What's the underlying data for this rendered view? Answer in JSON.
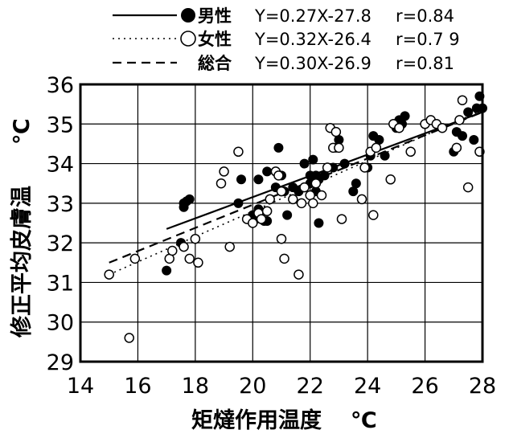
{
  "chart_data": {
    "type": "scatter",
    "xlabel": "矩燵作用温度",
    "x_unit": "℃",
    "ylabel": "修正平均皮膚温",
    "y_unit": "℃",
    "xlim": [
      14,
      28
    ],
    "ylim": [
      29,
      36
    ],
    "x_ticks": [
      14,
      16,
      18,
      20,
      22,
      24,
      26,
      28
    ],
    "y_ticks": [
      29,
      30,
      31,
      32,
      33,
      34,
      35,
      36
    ],
    "grid": true,
    "legend_position": "top",
    "series": [
      {
        "name": "男性",
        "marker": "filled-circle",
        "equation": "Y=0.27X-27.8",
        "r": "r=0.84",
        "line_style": "solid",
        "fit": [
          17,
          32.35,
          28,
          35.3
        ],
        "points": [
          [
            17.0,
            31.3
          ],
          [
            17.5,
            32.0
          ],
          [
            17.6,
            32.9
          ],
          [
            17.6,
            33.0
          ],
          [
            17.7,
            33.05
          ],
          [
            17.8,
            33.1
          ],
          [
            19.5,
            33.0
          ],
          [
            19.6,
            33.6
          ],
          [
            20.0,
            32.7
          ],
          [
            20.1,
            32.6
          ],
          [
            20.2,
            32.85
          ],
          [
            20.2,
            33.6
          ],
          [
            20.4,
            32.55
          ],
          [
            20.5,
            32.55
          ],
          [
            20.5,
            33.8
          ],
          [
            20.8,
            33.4
          ],
          [
            20.9,
            34.4
          ],
          [
            21.0,
            33.7
          ],
          [
            21.1,
            33.3
          ],
          [
            21.2,
            32.7
          ],
          [
            21.4,
            33.4
          ],
          [
            21.6,
            33.3
          ],
          [
            21.8,
            34.0
          ],
          [
            22.0,
            33.5
          ],
          [
            22.0,
            33.7
          ],
          [
            22.1,
            34.1
          ],
          [
            22.2,
            33.7
          ],
          [
            22.2,
            33.3
          ],
          [
            22.3,
            33.6
          ],
          [
            22.3,
            32.5
          ],
          [
            22.5,
            33.7
          ],
          [
            22.8,
            33.9
          ],
          [
            22.9,
            34.4
          ],
          [
            23.0,
            34.6
          ],
          [
            23.2,
            34.0
          ],
          [
            23.5,
            33.3
          ],
          [
            23.6,
            33.5
          ],
          [
            24.0,
            33.9
          ],
          [
            24.1,
            34.2
          ],
          [
            24.2,
            34.7
          ],
          [
            24.4,
            34.6
          ],
          [
            24.6,
            34.2
          ],
          [
            25.0,
            34.9
          ],
          [
            25.1,
            35.1
          ],
          [
            25.2,
            35.0
          ],
          [
            25.3,
            35.2
          ],
          [
            25.5,
            34.3
          ],
          [
            27.0,
            34.3
          ],
          [
            27.1,
            34.8
          ],
          [
            27.3,
            34.7
          ],
          [
            27.5,
            35.3
          ],
          [
            27.7,
            34.6
          ],
          [
            27.8,
            35.4
          ],
          [
            27.9,
            35.7
          ],
          [
            28.0,
            35.4
          ]
        ]
      },
      {
        "name": "女性",
        "marker": "open-circle",
        "equation": "Y=0.32X-26.4",
        "r": "r=0.7 9",
        "line_style": "dotted",
        "fit": [
          15,
          31.2,
          28,
          35.35
        ],
        "points": [
          [
            15.0,
            31.2
          ],
          [
            15.9,
            31.6
          ],
          [
            15.7,
            29.6
          ],
          [
            17.1,
            31.6
          ],
          [
            17.2,
            31.8
          ],
          [
            17.6,
            31.9
          ],
          [
            17.8,
            31.6
          ],
          [
            18.0,
            32.1
          ],
          [
            18.1,
            31.5
          ],
          [
            18.9,
            33.5
          ],
          [
            19.0,
            33.8
          ],
          [
            19.2,
            31.9
          ],
          [
            19.5,
            34.3
          ],
          [
            19.8,
            32.6
          ],
          [
            20.0,
            32.5
          ],
          [
            20.2,
            32.75
          ],
          [
            20.3,
            32.6
          ],
          [
            20.5,
            32.8
          ],
          [
            20.6,
            33.1
          ],
          [
            20.8,
            33.8
          ],
          [
            20.9,
            33.7
          ],
          [
            21.0,
            33.3
          ],
          [
            21.0,
            32.1
          ],
          [
            21.1,
            31.6
          ],
          [
            21.4,
            33.1
          ],
          [
            21.6,
            31.2
          ],
          [
            21.7,
            33.0
          ],
          [
            21.8,
            33.4
          ],
          [
            22.0,
            33.2
          ],
          [
            22.1,
            33.0
          ],
          [
            22.2,
            33.5
          ],
          [
            22.4,
            33.2
          ],
          [
            22.6,
            33.9
          ],
          [
            22.7,
            34.9
          ],
          [
            22.8,
            34.4
          ],
          [
            22.9,
            34.8
          ],
          [
            23.0,
            34.4
          ],
          [
            23.1,
            32.6
          ],
          [
            23.8,
            33.1
          ],
          [
            23.9,
            33.9
          ],
          [
            24.1,
            34.3
          ],
          [
            24.2,
            32.7
          ],
          [
            24.3,
            34.4
          ],
          [
            24.8,
            33.6
          ],
          [
            24.9,
            35.0
          ],
          [
            25.1,
            34.9
          ],
          [
            25.5,
            34.3
          ],
          [
            26.0,
            35.0
          ],
          [
            26.2,
            35.1
          ],
          [
            26.4,
            35.0
          ],
          [
            26.6,
            34.9
          ],
          [
            27.1,
            34.4
          ],
          [
            27.2,
            35.1
          ],
          [
            27.3,
            35.6
          ],
          [
            27.5,
            33.4
          ],
          [
            27.9,
            34.3
          ]
        ]
      },
      {
        "name": "総合",
        "marker": "none",
        "equation": "Y=0.30X-26.9",
        "r": "r=0.81",
        "line_style": "dashed",
        "fit": [
          15,
          31.5,
          28,
          35.3
        ],
        "points": []
      }
    ]
  }
}
